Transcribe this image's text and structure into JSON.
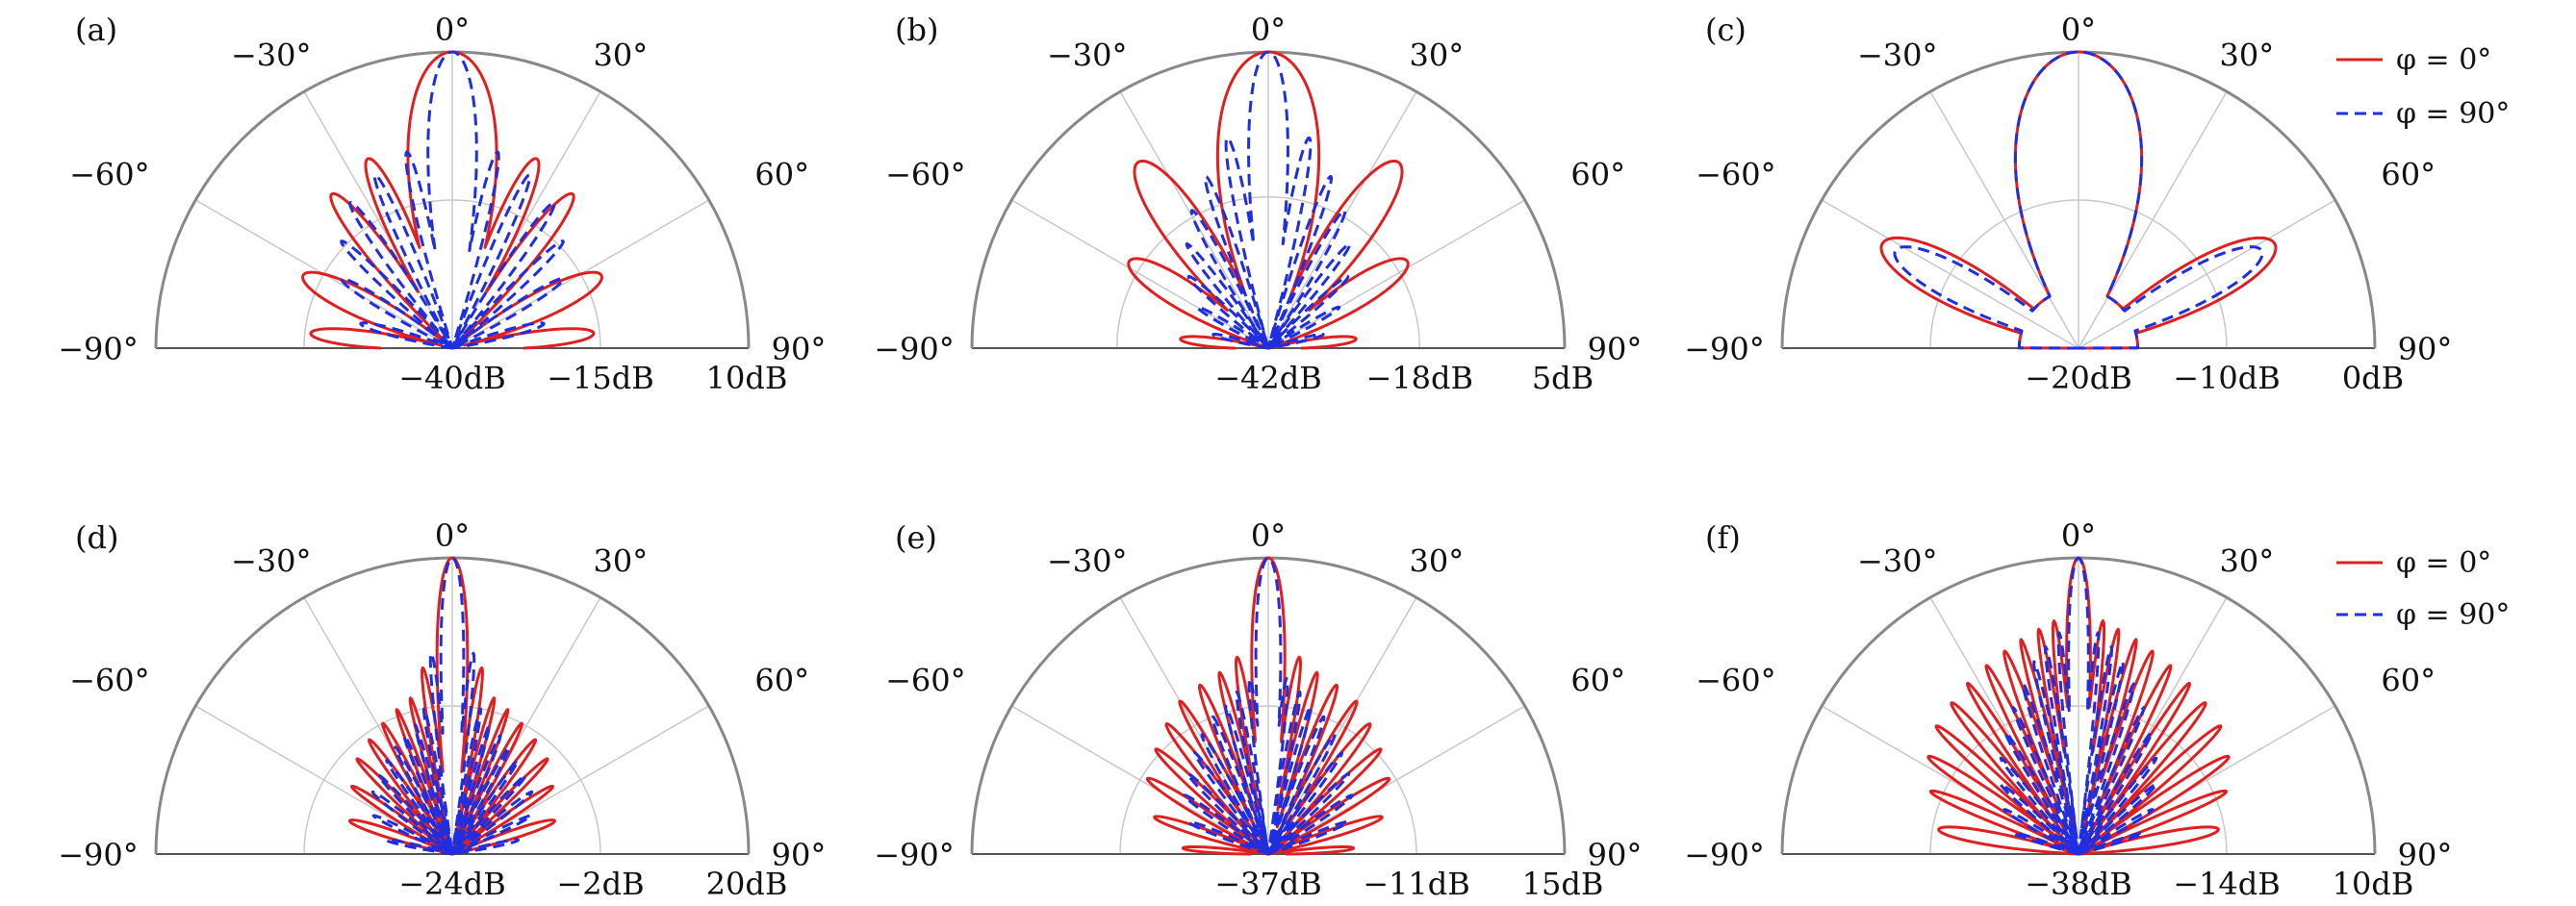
{
  "legend": {
    "red_label": "φ = 0°",
    "blue_label": "φ = 90°"
  },
  "colors": {
    "phi0": "#e02020",
    "phi90": "#1f2ee0",
    "outer_arc": "#888888",
    "grid": "#c8c8c8"
  },
  "chart_data": [
    {
      "type": "line",
      "panel": "(a)",
      "coordinate_system": "polar-half",
      "theta_ticks": [
        "−90°",
        "−60°",
        "−30°",
        "0°",
        "30°",
        "60°",
        "90°"
      ],
      "r_ticks": [
        "−40dB",
        "−15dB",
        "10dB"
      ],
      "rlim": [
        -40,
        10
      ],
      "red": {
        "main_peak": 10,
        "main_width": 11,
        "side_lobes": [
          [
            24,
            -5,
            5
          ],
          [
            38,
            -7,
            5
          ],
          [
            64,
            -12,
            8
          ],
          [
            84,
            -16,
            6
          ]
        ],
        "null_level": -40
      },
      "blue": {
        "main_peak": 10,
        "main_width": 6,
        "side_lobes": [
          [
            13,
            -6,
            2.5
          ],
          [
            24,
            -8,
            2.5
          ],
          [
            35,
            -10,
            3
          ],
          [
            46,
            -14,
            3
          ],
          [
            58,
            -18,
            4
          ],
          [
            75,
            -24,
            5
          ]
        ],
        "null_level": -40
      }
    },
    {
      "type": "line",
      "panel": "(b)",
      "coordinate_system": "polar-half",
      "theta_ticks": [
        "−90°",
        "−60°",
        "−30°",
        "0°",
        "30°",
        "60°",
        "90°"
      ],
      "r_ticks": [
        "−42dB",
        "−18dB",
        "5dB"
      ],
      "rlim": [
        -42,
        5
      ],
      "red": {
        "main_peak": 5,
        "main_width": 13,
        "side_lobes": [
          [
            35,
            -6,
            8
          ],
          [
            58,
            -16,
            9
          ],
          [
            84,
            -28,
            7
          ]
        ],
        "null_level": -42
      },
      "blue": {
        "main_peak": 5,
        "main_width": 5,
        "side_lobes": [
          [
            11,
            -8,
            2.5
          ],
          [
            20,
            -13,
            2.5
          ],
          [
            29,
            -17,
            3
          ],
          [
            38,
            -21,
            3
          ],
          [
            48,
            -25,
            3.5
          ],
          [
            60,
            -29,
            4
          ],
          [
            76,
            -33,
            5
          ]
        ],
        "null_level": -42
      }
    },
    {
      "type": "line",
      "panel": "(c)",
      "coordinate_system": "polar-half",
      "theta_ticks": [
        "−90°",
        "−60°",
        "−30°",
        "0°",
        "30°",
        "60°",
        "90°"
      ],
      "r_ticks": [
        "−20dB",
        "−10dB",
        "0dB"
      ],
      "rlim": [
        -20,
        0
      ],
      "red": {
        "main_peak": 0,
        "main_width": 25,
        "side_lobes": [
          [
            62,
            -5,
            14
          ]
        ],
        "null_level": -20,
        "null_floor": -16,
        "null_at": 46
      },
      "blue": {
        "main_peak": 0,
        "main_width": 25,
        "side_lobes": [
          [
            62,
            -6,
            12
          ]
        ],
        "null_level": -20,
        "null_floor": -16,
        "null_at": 46
      },
      "legend_position": "top-right"
    },
    {
      "type": "line",
      "panel": "(d)",
      "coordinate_system": "polar-half",
      "theta_ticks": [
        "−90°",
        "−60°",
        "−30°",
        "0°",
        "30°",
        "60°",
        "90°"
      ],
      "r_ticks": [
        "−24dB",
        "−2dB",
        "20dB"
      ],
      "rlim": [
        -24,
        20
      ],
      "red": {
        "main_peak": 20,
        "main_width": 4,
        "side_lobes": [
          [
            9,
            4,
            2
          ],
          [
            15,
            0,
            2
          ],
          [
            21,
            -1,
            2
          ],
          [
            28,
            -2,
            2.5
          ],
          [
            36,
            -3,
            3
          ],
          [
            45,
            -4,
            3
          ],
          [
            56,
            -6,
            3.5
          ],
          [
            72,
            -8,
            5
          ]
        ],
        "null_level": -24
      },
      "blue": {
        "main_peak": 20,
        "main_width": 3,
        "side_lobes": [
          [
            6,
            6,
            1.5
          ],
          [
            11,
            -2,
            1.5
          ],
          [
            16,
            -4,
            1.5
          ],
          [
            22,
            -5,
            2
          ],
          [
            28,
            -6,
            2
          ],
          [
            35,
            -7,
            2
          ],
          [
            43,
            -8,
            2.5
          ],
          [
            52,
            -9,
            3
          ],
          [
            64,
            -11,
            3
          ],
          [
            78,
            -14,
            4
          ]
        ],
        "null_level": -24
      }
    },
    {
      "type": "line",
      "panel": "(e)",
      "coordinate_system": "polar-half",
      "theta_ticks": [
        "−90°",
        "−60°",
        "−30°",
        "0°",
        "30°",
        "60°",
        "90°"
      ],
      "r_ticks": [
        "−37dB",
        "−11dB",
        "15dB"
      ],
      "rlim": [
        -37,
        15
      ],
      "red": {
        "main_peak": 15,
        "main_width": 4,
        "side_lobes": [
          [
            9,
            -2,
            2
          ],
          [
            15,
            -4,
            2
          ],
          [
            22,
            -5,
            2.5
          ],
          [
            30,
            -6,
            2.5
          ],
          [
            38,
            -8,
            3
          ],
          [
            47,
            -10,
            3
          ],
          [
            58,
            -12,
            3.5
          ],
          [
            72,
            -16,
            4
          ],
          [
            86,
            -22,
            4
          ]
        ],
        "null_level": -37
      },
      "blue": {
        "main_peak": 15,
        "main_width": 3,
        "side_lobes": [
          [
            6,
            -6,
            1.5
          ],
          [
            11,
            -8,
            1.5
          ],
          [
            16,
            -10,
            1.5
          ],
          [
            22,
            -11,
            2
          ],
          [
            29,
            -13,
            2
          ],
          [
            36,
            -15,
            2
          ],
          [
            45,
            -17,
            2.5
          ],
          [
            55,
            -19,
            3
          ],
          [
            68,
            -22,
            3.5
          ]
        ],
        "null_level": -37
      }
    },
    {
      "type": "line",
      "panel": "(f)",
      "coordinate_system": "polar-half",
      "theta_ticks": [
        "−90°",
        "−60°",
        "−30°",
        "0°",
        "30°",
        "60°",
        "90°"
      ],
      "r_ticks": [
        "−38dB",
        "−14dB",
        "10dB"
      ],
      "rlim": [
        -38,
        10
      ],
      "red": {
        "main_peak": 10,
        "main_width": 3,
        "side_lobes": [
          [
            6,
            0,
            1.5
          ],
          [
            10,
            -1,
            1.5
          ],
          [
            15,
            -2,
            1.5
          ],
          [
            20,
            -3,
            2
          ],
          [
            26,
            -4,
            2
          ],
          [
            33,
            -5,
            2
          ],
          [
            40,
            -6,
            2.5
          ],
          [
            48,
            -7,
            2.5
          ],
          [
            57,
            -9,
            3
          ],
          [
            67,
            -12,
            3
          ],
          [
            80,
            -15,
            5
          ]
        ],
        "null_level": -38
      },
      "blue": {
        "main_peak": 10,
        "main_width": 2.5,
        "side_lobes": [
          [
            5,
            -2,
            1.2
          ],
          [
            9,
            -4,
            1.2
          ],
          [
            13,
            -6,
            1.2
          ],
          [
            18,
            -9,
            1.5
          ],
          [
            24,
            -12,
            1.5
          ],
          [
            31,
            -15,
            1.8
          ],
          [
            39,
            -18,
            2
          ],
          [
            48,
            -21,
            2.5
          ],
          [
            59,
            -24,
            3
          ],
          [
            72,
            -27,
            3.5
          ]
        ],
        "null_level": -38
      },
      "legend_position": "top-right"
    }
  ]
}
